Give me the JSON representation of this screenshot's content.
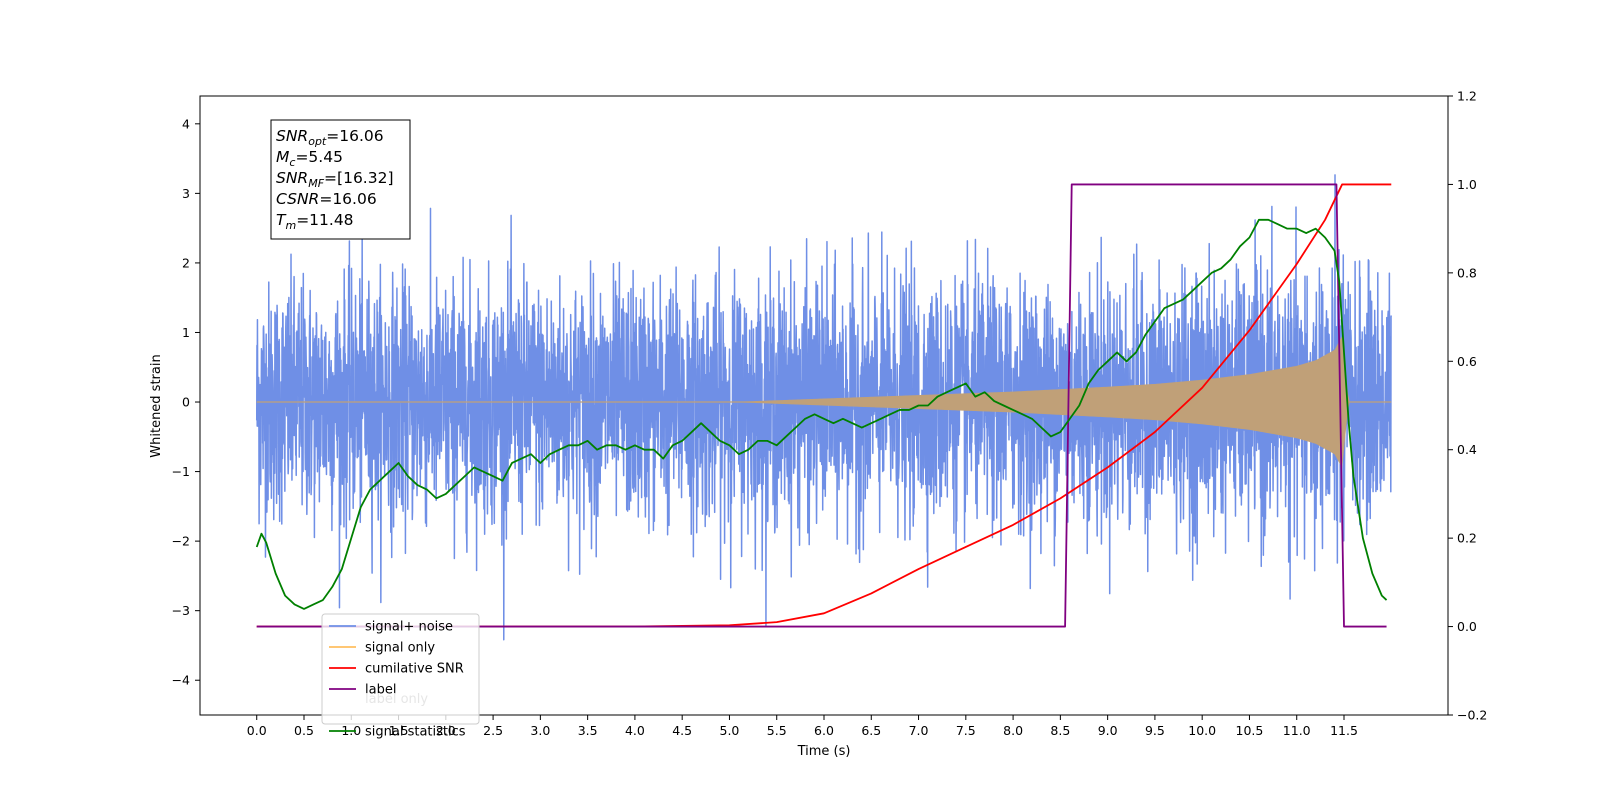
{
  "chart_data": {
    "type": "line",
    "xlabel": "Time (s)",
    "ylabel": "Whitened strain",
    "xlim": [
      -0.6,
      12.6
    ],
    "ylim": [
      -4.5,
      4.4
    ],
    "y2lim": [
      -0.2,
      1.2
    ],
    "x_ticks": [
      0.0,
      0.5,
      1.0,
      1.5,
      2.0,
      2.5,
      3.0,
      3.5,
      4.0,
      4.5,
      5.0,
      5.5,
      6.0,
      6.5,
      7.0,
      7.5,
      8.0,
      8.5,
      9.0,
      9.5,
      10.0,
      10.5,
      11.0,
      11.5
    ],
    "x_tick_labels": [
      "0.0",
      "0.5",
      "1.0",
      "1.5",
      "2.0",
      "2.5",
      "3.0",
      "3.5",
      "4.0",
      "4.5",
      "5.0",
      "5.5",
      "6.0",
      "6.5",
      "7.0",
      "7.5",
      "8.0",
      "8.5",
      "9.0",
      "9.5",
      "10.0",
      "10.5",
      "11.0",
      "11.5"
    ],
    "y_ticks": [
      -4,
      -3,
      -2,
      -1,
      0,
      1,
      2,
      3,
      4
    ],
    "y_tick_labels": [
      "−4",
      "−3",
      "−2",
      "−1",
      "0",
      "1",
      "2",
      "3",
      "4"
    ],
    "y2_ticks": [
      -0.2,
      0.0,
      0.2,
      0.4,
      0.6,
      0.8,
      1.0,
      1.2
    ],
    "y2_tick_labels": [
      "−0.2",
      "0.0",
      "0.2",
      "0.4",
      "0.6",
      "0.8",
      "1.0",
      "1.2"
    ],
    "grid": false,
    "legend_position": "lower-left",
    "annotation": {
      "lines": [
        {
          "var": "SNR",
          "sub": "opt",
          "value": "=16.06"
        },
        {
          "var": "M",
          "sub": "c",
          "value": "=5.45"
        },
        {
          "var": "SNR",
          "sub": "MF",
          "value": "=[16.32]"
        },
        {
          "var": "CSNR",
          "sub": "",
          "value": "=16.06"
        },
        {
          "var": "T",
          "sub": "m",
          "value": "=11.48"
        }
      ]
    },
    "series": [
      {
        "name": "signal+ noise",
        "axis": "left",
        "color": "#6f8fe6",
        "noise_sigma": 0.85,
        "x_range": [
          0.0,
          12.0
        ]
      },
      {
        "name": "signal only",
        "axis": "left",
        "color": "#c0a078",
        "envelope": {
          "x": [
            0.0,
            5.0,
            6.0,
            7.0,
            8.0,
            9.0,
            9.5,
            10.0,
            10.5,
            11.0,
            11.2,
            11.4,
            11.48,
            11.55,
            12.0
          ],
          "y": [
            0.0,
            0.0,
            0.05,
            0.1,
            0.15,
            0.22,
            0.26,
            0.32,
            0.4,
            0.52,
            0.6,
            0.75,
            0.95,
            0.0,
            0.0
          ]
        }
      },
      {
        "name": "cumilative SNR",
        "axis": "right",
        "color": "#ff0000",
        "x": [
          0.0,
          4.0,
          5.0,
          5.5,
          6.0,
          6.5,
          7.0,
          7.5,
          8.0,
          8.5,
          9.0,
          9.5,
          10.0,
          10.5,
          11.0,
          11.3,
          11.48,
          12.0
        ],
        "y": [
          0.0,
          0.0,
          0.003,
          0.01,
          0.03,
          0.075,
          0.13,
          0.18,
          0.23,
          0.29,
          0.36,
          0.44,
          0.54,
          0.67,
          0.82,
          0.92,
          1.0,
          1.0
        ]
      },
      {
        "name": "label",
        "axis": "right",
        "color": "#800080",
        "x": [
          0.0,
          8.55,
          8.62,
          11.42,
          11.5,
          11.95
        ],
        "y": [
          0.0,
          0.0,
          1.0,
          1.0,
          0.0,
          0.0
        ]
      },
      {
        "name": "label only",
        "axis": "right",
        "color": "#e8e8e8",
        "x": [],
        "y": []
      },
      {
        "name": "signal statistics",
        "axis": "right",
        "color": "#008000",
        "x": [
          0.0,
          0.05,
          0.1,
          0.2,
          0.3,
          0.4,
          0.5,
          0.6,
          0.7,
          0.8,
          0.9,
          1.0,
          1.1,
          1.2,
          1.3,
          1.4,
          1.5,
          1.6,
          1.7,
          1.8,
          1.9,
          2.0,
          2.1,
          2.2,
          2.3,
          2.4,
          2.5,
          2.6,
          2.7,
          2.8,
          2.9,
          3.0,
          3.1,
          3.2,
          3.3,
          3.4,
          3.5,
          3.6,
          3.7,
          3.8,
          3.9,
          4.0,
          4.1,
          4.2,
          4.3,
          4.4,
          4.5,
          4.6,
          4.7,
          4.8,
          4.9,
          5.0,
          5.1,
          5.2,
          5.3,
          5.4,
          5.5,
          5.6,
          5.7,
          5.8,
          5.9,
          6.0,
          6.1,
          6.2,
          6.3,
          6.4,
          6.5,
          6.6,
          6.7,
          6.8,
          6.9,
          7.0,
          7.1,
          7.2,
          7.3,
          7.4,
          7.5,
          7.6,
          7.7,
          7.8,
          7.9,
          8.0,
          8.1,
          8.2,
          8.3,
          8.4,
          8.5,
          8.6,
          8.7,
          8.8,
          8.9,
          9.0,
          9.1,
          9.2,
          9.3,
          9.4,
          9.5,
          9.6,
          9.7,
          9.8,
          9.9,
          10.0,
          10.1,
          10.2,
          10.3,
          10.4,
          10.5,
          10.6,
          10.7,
          10.8,
          10.9,
          11.0,
          11.1,
          11.2,
          11.3,
          11.4,
          11.45,
          11.5,
          11.55,
          11.6,
          11.7,
          11.8,
          11.9,
          11.95
        ],
        "y": [
          0.18,
          0.21,
          0.19,
          0.12,
          0.07,
          0.05,
          0.04,
          0.05,
          0.06,
          0.09,
          0.13,
          0.2,
          0.27,
          0.31,
          0.33,
          0.35,
          0.37,
          0.34,
          0.32,
          0.31,
          0.29,
          0.3,
          0.32,
          0.34,
          0.36,
          0.35,
          0.34,
          0.33,
          0.37,
          0.38,
          0.39,
          0.37,
          0.39,
          0.4,
          0.41,
          0.41,
          0.42,
          0.4,
          0.41,
          0.41,
          0.4,
          0.41,
          0.4,
          0.4,
          0.38,
          0.41,
          0.42,
          0.44,
          0.46,
          0.44,
          0.42,
          0.41,
          0.39,
          0.4,
          0.42,
          0.42,
          0.41,
          0.43,
          0.45,
          0.47,
          0.48,
          0.47,
          0.46,
          0.47,
          0.46,
          0.45,
          0.46,
          0.47,
          0.48,
          0.49,
          0.49,
          0.5,
          0.5,
          0.52,
          0.53,
          0.54,
          0.55,
          0.52,
          0.53,
          0.51,
          0.5,
          0.49,
          0.48,
          0.47,
          0.45,
          0.43,
          0.44,
          0.47,
          0.5,
          0.55,
          0.58,
          0.6,
          0.62,
          0.6,
          0.62,
          0.66,
          0.69,
          0.72,
          0.73,
          0.74,
          0.76,
          0.78,
          0.8,
          0.81,
          0.83,
          0.86,
          0.88,
          0.92,
          0.92,
          0.91,
          0.9,
          0.9,
          0.89,
          0.9,
          0.88,
          0.85,
          0.78,
          0.62,
          0.46,
          0.34,
          0.2,
          0.12,
          0.07,
          0.06
        ]
      }
    ]
  }
}
